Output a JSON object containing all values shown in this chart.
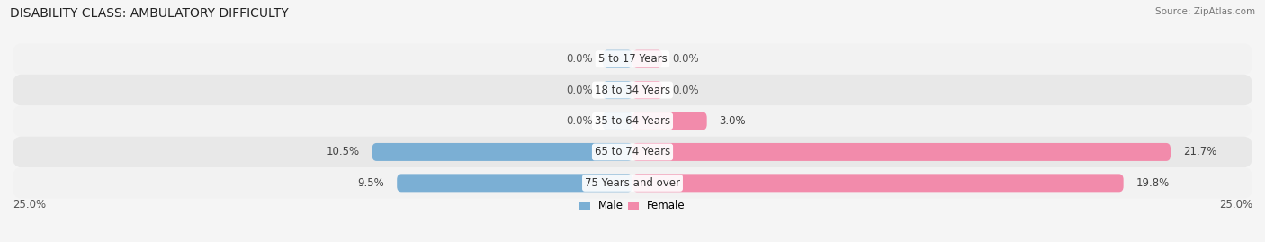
{
  "title": "DISABILITY CLASS: AMBULATORY DIFFICULTY",
  "source": "Source: ZipAtlas.com",
  "categories": [
    "5 to 17 Years",
    "18 to 34 Years",
    "35 to 64 Years",
    "65 to 74 Years",
    "75 Years and over"
  ],
  "male_values": [
    0.0,
    0.0,
    0.0,
    10.5,
    9.5
  ],
  "female_values": [
    0.0,
    0.0,
    3.0,
    21.7,
    19.8
  ],
  "male_color": "#7bafd4",
  "female_color": "#f28bab",
  "row_bg_colors": [
    "#f2f2f2",
    "#e8e8e8"
  ],
  "max_val": 25.0,
  "title_fontsize": 10,
  "label_fontsize": 8.5,
  "tick_fontsize": 8.5,
  "bar_height": 0.58,
  "min_stub": 1.2,
  "figsize": [
    14.06,
    2.69
  ],
  "dpi": 100,
  "bg_color": "#f5f5f5"
}
